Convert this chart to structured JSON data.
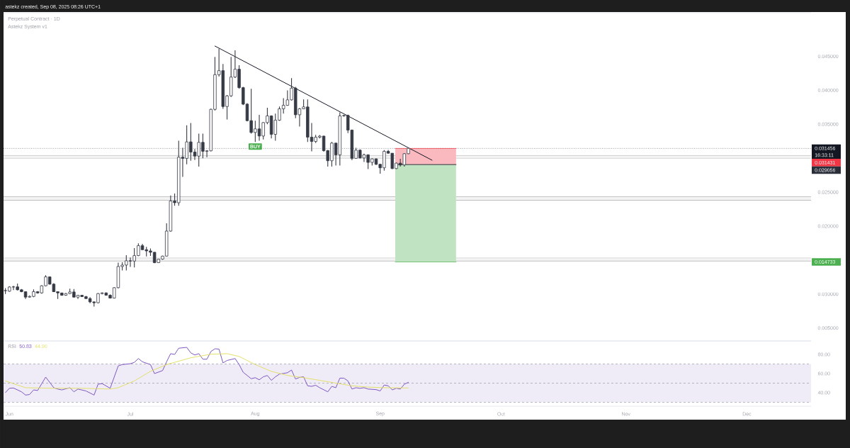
{
  "chart_data": [
    {
      "type": "candlestick",
      "title": "Perpetual Contract · 1D",
      "subtitle": "Astekz System v1",
      "x": [
        "2025-05-31",
        "2025-06-01",
        "2025-06-02",
        "2025-06-03",
        "2025-06-04",
        "2025-06-05",
        "2025-06-06",
        "2025-06-07",
        "2025-06-08",
        "2025-06-09",
        "2025-06-10",
        "2025-06-11",
        "2025-06-12",
        "2025-06-13",
        "2025-06-14",
        "2025-06-15",
        "2025-06-16",
        "2025-06-17",
        "2025-06-18",
        "2025-06-19",
        "2025-06-20",
        "2025-06-21",
        "2025-06-22",
        "2025-06-23",
        "2025-06-24",
        "2025-06-25",
        "2025-06-26",
        "2025-06-27",
        "2025-06-28",
        "2025-06-29",
        "2025-06-30",
        "2025-07-01",
        "2025-07-02",
        "2025-07-03",
        "2025-07-04",
        "2025-07-05",
        "2025-07-06",
        "2025-07-07",
        "2025-07-08",
        "2025-07-09",
        "2025-07-10",
        "2025-07-11",
        "2025-07-12",
        "2025-07-13",
        "2025-07-14",
        "2025-07-15",
        "2025-07-16",
        "2025-07-17",
        "2025-07-18",
        "2025-07-19",
        "2025-07-20",
        "2025-07-21",
        "2025-07-22",
        "2025-07-23",
        "2025-07-24",
        "2025-07-25",
        "2025-07-26",
        "2025-07-27",
        "2025-07-28",
        "2025-07-29",
        "2025-07-30",
        "2025-07-31",
        "2025-08-01",
        "2025-08-02",
        "2025-08-03",
        "2025-08-04",
        "2025-08-05",
        "2025-08-06",
        "2025-08-07",
        "2025-08-08",
        "2025-08-09",
        "2025-08-10",
        "2025-08-11",
        "2025-08-12",
        "2025-08-13",
        "2025-08-14",
        "2025-08-15",
        "2025-08-16",
        "2025-08-17",
        "2025-08-18",
        "2025-08-19",
        "2025-08-20",
        "2025-08-21",
        "2025-08-22",
        "2025-08-23",
        "2025-08-24",
        "2025-08-25",
        "2025-08-26",
        "2025-08-27",
        "2025-08-28",
        "2025-08-29",
        "2025-08-30",
        "2025-08-31",
        "2025-09-01",
        "2025-09-02",
        "2025-09-03",
        "2025-09-04",
        "2025-09-05",
        "2025-09-06",
        "2025-09-07",
        "2025-09-08"
      ],
      "ohlc": [
        [
          0.01052,
          0.01087,
          0.01,
          0.0105
        ],
        [
          0.01042,
          0.01115,
          0.01035,
          0.01104
        ],
        [
          0.01104,
          0.01122,
          0.01059,
          0.01106
        ],
        [
          0.01106,
          0.01156,
          0.01052,
          0.01063
        ],
        [
          0.01063,
          0.01073,
          0.01026,
          0.01035
        ],
        [
          0.01035,
          0.0104,
          0.00927,
          0.00955
        ],
        [
          0.00955,
          0.0098,
          0.0095,
          0.00965
        ],
        [
          0.00965,
          0.01069,
          0.00955,
          0.01035
        ],
        [
          0.01035,
          0.01042,
          0.01007,
          0.01017
        ],
        [
          0.01017,
          0.0113,
          0.01007,
          0.01122
        ],
        [
          0.01122,
          0.01278,
          0.01115,
          0.01253
        ],
        [
          0.01253,
          0.0126,
          0.0114,
          0.01146
        ],
        [
          0.01146,
          0.0116,
          0.0103,
          0.01035
        ],
        [
          0.01035,
          0.0104,
          0.00927,
          0.01017
        ],
        [
          0.01017,
          0.01019,
          0.00975,
          0.00983
        ],
        [
          0.00983,
          0.01017,
          0.00975,
          0.01007
        ],
        [
          0.01007,
          0.0108,
          0.01,
          0.01031
        ],
        [
          0.01031,
          0.01073,
          0.0095,
          0.00955
        ],
        [
          0.00955,
          0.00986,
          0.00927,
          0.00983
        ],
        [
          0.00983,
          0.00988,
          0.00958,
          0.00962
        ],
        [
          0.00962,
          0.00972,
          0.00928,
          0.00934
        ],
        [
          0.00934,
          0.00955,
          0.00865,
          0.00885
        ],
        [
          0.00885,
          0.0089,
          0.00816,
          0.00872
        ],
        [
          0.00872,
          0.01015,
          0.00865,
          0.01007
        ],
        [
          0.01007,
          0.01025,
          0.00995,
          0.01017
        ],
        [
          0.01017,
          0.01025,
          0.00978,
          0.00983
        ],
        [
          0.00983,
          0.00995,
          0.00935,
          0.00941
        ],
        [
          0.00941,
          0.011,
          0.00935,
          0.01094
        ],
        [
          0.01094,
          0.01462,
          0.01085,
          0.01406
        ],
        [
          0.01406,
          0.01469,
          0.01347,
          0.01427
        ],
        [
          0.01427,
          0.01573,
          0.01347,
          0.0149
        ],
        [
          0.0149,
          0.01538,
          0.01399,
          0.01486
        ],
        [
          0.01486,
          0.01677,
          0.01392,
          0.01566
        ],
        [
          0.01566,
          0.01747,
          0.0156,
          0.01712
        ],
        [
          0.01712,
          0.0174,
          0.01648,
          0.01653
        ],
        [
          0.01653,
          0.01695,
          0.01555,
          0.01635
        ],
        [
          0.01635,
          0.0167,
          0.01563,
          0.01615
        ],
        [
          0.01615,
          0.0162,
          0.01455,
          0.01462
        ],
        [
          0.01462,
          0.0152,
          0.01458,
          0.01514
        ],
        [
          0.01514,
          0.01565,
          0.01505,
          0.01559
        ],
        [
          0.01559,
          0.02042,
          0.01555,
          0.01927
        ],
        [
          0.01927,
          0.0245,
          0.0192,
          0.0237
        ],
        [
          0.0237,
          0.0248,
          0.023,
          0.02344
        ],
        [
          0.02344,
          0.03257,
          0.023,
          0.03014
        ],
        [
          0.03014,
          0.03153,
          0.02726,
          0.02997
        ],
        [
          0.02997,
          0.03483,
          0.0291,
          0.0324
        ],
        [
          0.0324,
          0.03517,
          0.02962,
          0.0309
        ],
        [
          0.0309,
          0.03135,
          0.02972,
          0.03031
        ],
        [
          0.03031,
          0.0336,
          0.02875,
          0.03233
        ],
        [
          0.03233,
          0.0336,
          0.03,
          0.03101
        ],
        [
          0.03101,
          0.03118,
          0.03014,
          0.03108
        ],
        [
          0.03108,
          0.0373,
          0.03101,
          0.03719
        ],
        [
          0.03719,
          0.0449,
          0.037,
          0.04229
        ],
        [
          0.04229,
          0.04611,
          0.042,
          0.04288
        ],
        [
          0.04288,
          0.04385,
          0.03726,
          0.0376
        ],
        [
          0.0376,
          0.0393,
          0.03569,
          0.03917
        ],
        [
          0.03917,
          0.0449,
          0.039,
          0.04194
        ],
        [
          0.04194,
          0.04587,
          0.0418,
          0.04309
        ],
        [
          0.04309,
          0.04368,
          0.0402,
          0.04038
        ],
        [
          0.04038,
          0.0405,
          0.0378,
          0.03795
        ],
        [
          0.03795,
          0.0381,
          0.0354,
          0.03552
        ],
        [
          0.03552,
          0.04021,
          0.0336,
          0.03378
        ],
        [
          0.03378,
          0.03552,
          0.0324,
          0.03431
        ],
        [
          0.03431,
          0.03639,
          0.03257,
          0.03326
        ],
        [
          0.03326,
          0.0353,
          0.03274,
          0.03524
        ],
        [
          0.03524,
          0.03743,
          0.035,
          0.03622
        ],
        [
          0.03622,
          0.0363,
          0.03292,
          0.03351
        ],
        [
          0.03351,
          0.03656,
          0.03257,
          0.03559
        ],
        [
          0.03559,
          0.0376,
          0.0355,
          0.03726
        ],
        [
          0.03726,
          0.03882,
          0.03656,
          0.03778
        ],
        [
          0.03778,
          0.03997,
          0.0377,
          0.03858
        ],
        [
          0.03858,
          0.04177,
          0.0385,
          0.04031
        ],
        [
          0.04031,
          0.0405,
          0.03587,
          0.03639
        ],
        [
          0.03639,
          0.0374,
          0.03465,
          0.03726
        ],
        [
          0.03726,
          0.03865,
          0.0372,
          0.03754
        ],
        [
          0.03754,
          0.03865,
          0.0324,
          0.03309
        ],
        [
          0.03309,
          0.03517,
          0.03101,
          0.03246
        ],
        [
          0.03246,
          0.03344,
          0.03222,
          0.03309
        ],
        [
          0.03309,
          0.0334,
          0.0329,
          0.03325
        ],
        [
          0.03325,
          0.0333,
          0.03094,
          0.03111
        ],
        [
          0.03111,
          0.0312,
          0.02875,
          0.02962
        ],
        [
          0.02962,
          0.0324,
          0.02875,
          0.03222
        ],
        [
          0.03222,
          0.03225,
          0.02892,
          0.03049
        ],
        [
          0.03049,
          0.03674,
          0.02892,
          0.03622
        ],
        [
          0.03622,
          0.03639,
          0.0361,
          0.0363
        ],
        [
          0.0363,
          0.0364,
          0.0337,
          0.03413
        ],
        [
          0.03413,
          0.0342,
          0.0297,
          0.02997
        ],
        [
          0.02997,
          0.03153,
          0.0299,
          0.03118
        ],
        [
          0.03118,
          0.0313,
          0.02995,
          0.03003
        ],
        [
          0.03003,
          0.03066,
          0.02944,
          0.03049
        ],
        [
          0.03049,
          0.03055,
          0.0284,
          0.02938
        ],
        [
          0.02938,
          0.02995,
          0.02892,
          0.0299
        ],
        [
          0.0299,
          0.02995,
          0.029,
          0.0291
        ],
        [
          0.0291,
          0.02915,
          0.02771,
          0.02858
        ],
        [
          0.02858,
          0.03118,
          0.02816,
          0.03101
        ],
        [
          0.03101,
          0.0312,
          0.03066,
          0.03073
        ],
        [
          0.03073,
          0.03075,
          0.0284,
          0.02847
        ],
        [
          0.02847,
          0.02935,
          0.0284,
          0.02927
        ],
        [
          0.02927,
          0.0299,
          0.02875,
          0.029
        ],
        [
          0.029,
          0.03075,
          0.02875,
          0.03066
        ],
        [
          0.03066,
          0.03153,
          0.0306,
          0.031456
        ]
      ],
      "color": "#363a45",
      "series": [
        {
          "type": "line",
          "x": [
            "2025-07-22",
            "2025-09-13T21:00"
          ],
          "values": [
            0.0465,
            0.0297
          ],
          "color": "#131722"
        },
        {
          "type": "line",
          "x": [
            "2025-09-04T18:00",
            "2025-09-19T20:00"
          ],
          "values": [
            0.031431,
            0.031431
          ],
          "lower": [
            0.029056,
            0.029056
          ],
          "upper": [
            0.031431,
            0.031431
          ],
          "color": "#f23645"
        },
        {
          "type": "line",
          "x": [
            "2025-09-04T18:00",
            "2025-09-19T20:00"
          ],
          "values": [
            0.014733,
            0.014733
          ],
          "lower": [
            0.014733,
            0.014733
          ],
          "upper": [
            0.029056,
            0.029056
          ],
          "color": "#4caf50"
        },
        {
          "type": "line",
          "x": [
            "2025-09-04T18:00",
            "2025-09-19T20:00"
          ],
          "values": [
            0.029056,
            0.029056
          ],
          "color": "#2a2e39"
        }
      ],
      "xlim": [
        "2025-05-30T13:00",
        "2025-12-16T22:00"
      ],
      "ylim": [
        0.0031,
        0.0514
      ],
      "yticks": [
        {
          "value": 0.005,
          "label": "0.005000"
        },
        {
          "value": 0.01,
          "label": "0.010000"
        },
        {
          "value": 0.02,
          "label": "0.020000"
        },
        {
          "value": 0.025,
          "label": "0.025000"
        },
        {
          "value": 0.035,
          "label": "0.035000"
        },
        {
          "value": 0.04,
          "label": "0.040000"
        },
        {
          "value": 0.045,
          "label": "0.045000"
        }
      ],
      "tick_labels": "y",
      "ref_lines": [
        {
          "axis": "y",
          "value": 0.031456,
          "label": "0.031456",
          "color": "#131722",
          "line_style": "dotted"
        }
      ],
      "bands": [
        {
          "axis": "y",
          "from": 0.03,
          "to": 0.0304,
          "color": "#f4f4f4"
        },
        {
          "axis": "y",
          "from": 0.0238,
          "to": 0.02434,
          "color": "#f4f4f4"
        },
        {
          "axis": "y",
          "from": 0.01486,
          "to": 0.0153,
          "color": "#f4f4f4"
        }
      ],
      "annotations": [
        "astekz created, Sep 08, 2025 08:26 UTC+1",
        "16:33:11",
        "0.031431",
        "0.014733",
        "0.029056",
        {
          "text": "BUY",
          "x": "2025-08-01",
          "y": 0.0324
        }
      ]
    },
    {
      "type": "line",
      "title": "RSI",
      "series": [
        {
          "color": "#7e57c2",
          "x": [
            "2025-05-31",
            "2025-06-01",
            "2025-06-02",
            "2025-06-04",
            "2025-06-05",
            "2025-06-06",
            "2025-06-07",
            "2025-06-08",
            "2025-06-10",
            "2025-06-12",
            "2025-06-13",
            "2025-06-14",
            "2025-06-16",
            "2025-06-17",
            "2025-06-18",
            "2025-06-20",
            "2025-06-22",
            "2025-06-23",
            "2025-06-24",
            "2025-06-26",
            "2025-06-28",
            "2025-06-29",
            "2025-07-01",
            "2025-07-02",
            "2025-07-03",
            "2025-07-04",
            "2025-07-06",
            "2025-07-07",
            "2025-07-09",
            "2025-07-10",
            "2025-07-11",
            "2025-07-12",
            "2025-07-13",
            "2025-07-15",
            "2025-07-16",
            "2025-07-17",
            "2025-07-18",
            "2025-07-19",
            "2025-07-20",
            "2025-07-21",
            "2025-07-22",
            "2025-07-23",
            "2025-07-24",
            "2025-07-25",
            "2025-07-27",
            "2025-07-28",
            "2025-07-29",
            "2025-07-31",
            "2025-08-01",
            "2025-08-02",
            "2025-08-03",
            "2025-08-04",
            "2025-08-05",
            "2025-08-06",
            "2025-08-07",
            "2025-08-09",
            "2025-08-10",
            "2025-08-11",
            "2025-08-12",
            "2025-08-13",
            "2025-08-14",
            "2025-08-15",
            "2025-08-16",
            "2025-08-17",
            "2025-08-19",
            "2025-08-20",
            "2025-08-21",
            "2025-08-22",
            "2025-08-23",
            "2025-08-24",
            "2025-08-25",
            "2025-08-26",
            "2025-08-27",
            "2025-08-28",
            "2025-08-29",
            "2025-08-31",
            "2025-09-01",
            "2025-09-02",
            "2025-09-03",
            "2025-09-04",
            "2025-09-05",
            "2025-09-06",
            "2025-09-07",
            "2025-09-08"
          ],
          "values": [
            40.1,
            44.6,
            44.9,
            40.9,
            37.5,
            38.1,
            42.9,
            42.3,
            56.3,
            45.2,
            43.8,
            42.9,
            45.2,
            40.9,
            43.8,
            41.8,
            37.5,
            48.9,
            49.5,
            44.6,
            68.0,
            69.4,
            70.3,
            71.7,
            75.7,
            72.3,
            69.4,
            60.0,
            63.1,
            72.3,
            80.8,
            80.0,
            86.5,
            87.4,
            81.7,
            79.4,
            80.8,
            75.0,
            75.0,
            83.1,
            85.9,
            85.6,
            71.1,
            73.7,
            75.7,
            69.4,
            61.4,
            54.6,
            55.7,
            53.5,
            56.6,
            58.0,
            52.9,
            56.6,
            59.4,
            60.9,
            63.7,
            54.3,
            56.0,
            56.6,
            47.2,
            46.6,
            47.8,
            45.2,
            40.9,
            46.6,
            45.2,
            55.2,
            55.2,
            52.3,
            43.8,
            45.2,
            44.6,
            45.2,
            43.8,
            43.2,
            41.8,
            48.0,
            47.2,
            42.9,
            44.6,
            43.8,
            48.9,
            50.83
          ]
        },
        {
          "color": "#e3e06a",
          "x": [
            "2025-05-31",
            "2025-06-03",
            "2025-06-05",
            "2025-06-12",
            "2025-06-19",
            "2025-06-26",
            "2025-06-28",
            "2025-07-02",
            "2025-07-06",
            "2025-07-10",
            "2025-07-16",
            "2025-07-21",
            "2025-07-25",
            "2025-07-28",
            "2025-08-01",
            "2025-08-05",
            "2025-08-09",
            "2025-08-13",
            "2025-08-17",
            "2025-08-21",
            "2025-08-25",
            "2025-08-29",
            "2025-09-02",
            "2025-09-08"
          ],
          "values": [
            52.3,
            48.0,
            45.2,
            44.6,
            44.6,
            43.8,
            45.2,
            52.3,
            62.3,
            69.4,
            76.5,
            80.2,
            80.8,
            77.9,
            69.4,
            62.3,
            58.0,
            55.7,
            52.9,
            50.0,
            47.2,
            45.8,
            45.2,
            44.9
          ]
        }
      ],
      "xlim": [
        "2025-05-30T13:00",
        "2025-12-16T22:00"
      ],
      "xticks": [
        {
          "value": "2025-06-01",
          "label": "Jun"
        },
        {
          "value": "2025-07-01",
          "label": "Jul"
        },
        {
          "value": "2025-08-01",
          "label": "Aug"
        },
        {
          "value": "2025-09-01",
          "label": "Sep"
        },
        {
          "value": "2025-10-01",
          "label": "Oct"
        },
        {
          "value": "2025-11-01",
          "label": "Nov"
        },
        {
          "value": "2025-12-01",
          "label": "Dec"
        }
      ],
      "ylim": [
        25.9,
        94.1
      ],
      "yticks": [
        {
          "value": 40,
          "label": "40.00"
        },
        {
          "value": 60,
          "label": "60.00"
        },
        {
          "value": 80,
          "label": "80.00"
        }
      ],
      "bands": [
        {
          "axis": "y",
          "from": 30,
          "to": 70,
          "color": "#efebf7"
        }
      ],
      "ref_lines": [
        {
          "axis": "y",
          "value": 70,
          "color": "#9598a1",
          "line_style": "dashed"
        },
        {
          "axis": "y",
          "value": 50,
          "color": "#9598a1",
          "line_style": "dashed"
        },
        {
          "axis": "y",
          "value": 30,
          "color": "#9598a1",
          "line_style": "dashed"
        }
      ],
      "annotations": [
        "50.83",
        "44.90"
      ]
    }
  ]
}
